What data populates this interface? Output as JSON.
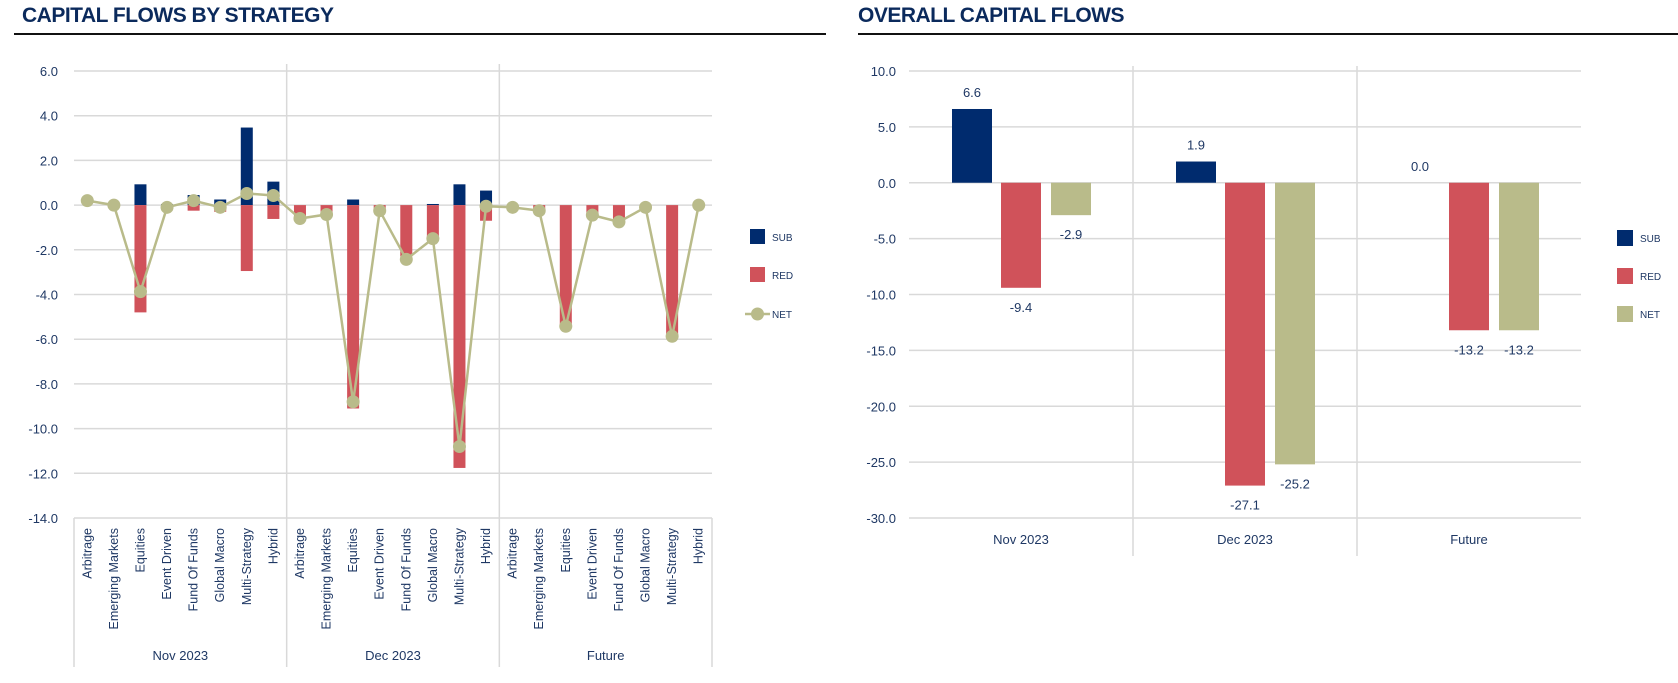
{
  "left_panel": {
    "title": "CAPITAL FLOWS BY STRATEGY"
  },
  "right_panel": {
    "title": "OVERALL CAPITAL FLOWS"
  },
  "colors": {
    "SUB": "#002b6e",
    "RED": "#d0525a",
    "NET": "#b9bb8a",
    "grid": "#d9d9d9",
    "title": "#0b2a5c"
  },
  "chart_data": [
    {
      "type": "bar",
      "subtype": "grouped-bar-with-line",
      "title": "CAPITAL FLOWS BY STRATEGY",
      "ylim": [
        -14,
        6
      ],
      "yticks": [
        "6.0",
        "4.0",
        "2.0",
        "0.0",
        "-2.0",
        "-4.0",
        "-6.0",
        "-8.0",
        "-10.0",
        "-12.0",
        "-14.0"
      ],
      "ytick_values": [
        6,
        4,
        2,
        0,
        -2,
        -4,
        -6,
        -8,
        -10,
        -12,
        -14
      ],
      "grid": true,
      "legend": {
        "position": "right",
        "entries": [
          "SUB",
          "RED",
          "NET"
        ]
      },
      "categories": [
        "Arbitrage",
        "Emerging Markets",
        "Equities",
        "Event Driven",
        "Fund Of Funds",
        "Global Macro",
        "Multi-Strategy",
        "Hybrid"
      ],
      "groups": [
        {
          "label": "Nov 2023",
          "SUB": [
            0.0,
            0.0,
            0.93,
            0.05,
            0.45,
            0.25,
            3.47,
            1.05
          ],
          "RED": [
            0.0,
            0.0,
            -4.8,
            -0.15,
            -0.25,
            -0.3,
            -2.95,
            -0.62
          ],
          "NET": [
            0.2,
            0.0,
            -3.87,
            -0.1,
            0.2,
            -0.1,
            0.52,
            0.43
          ]
        },
        {
          "label": "Dec 2023",
          "SUB": [
            0.0,
            0.0,
            0.25,
            0.0,
            0.0,
            0.05,
            0.93,
            0.65
          ],
          "RED": [
            -0.6,
            -0.45,
            -9.1,
            -0.25,
            -2.3,
            -1.5,
            -11.76,
            -0.7
          ],
          "NET": [
            -0.6,
            -0.42,
            -8.8,
            -0.25,
            -2.43,
            -1.5,
            -10.8,
            -0.05
          ]
        },
        {
          "label": "Future",
          "SUB": [
            0.0,
            0.0,
            0.0,
            0.0,
            0.0,
            0.0,
            0.0,
            0.0
          ],
          "RED": [
            -0.1,
            -0.25,
            -5.4,
            -0.45,
            -0.75,
            -0.1,
            -5.9,
            0.0
          ],
          "NET": [
            -0.1,
            -0.25,
            -5.42,
            -0.45,
            -0.75,
            -0.1,
            -5.87,
            0.0
          ]
        }
      ]
    },
    {
      "type": "bar",
      "title": "OVERALL CAPITAL FLOWS",
      "ylim": [
        -30,
        10
      ],
      "yticks": [
        "10.0",
        "5.0",
        "0.0",
        "-5.0",
        "-10.0",
        "-15.0",
        "-20.0",
        "-25.0",
        "-30.0"
      ],
      "ytick_values": [
        10,
        5,
        0,
        -5,
        -10,
        -15,
        -20,
        -25,
        -30
      ],
      "grid": true,
      "legend": {
        "position": "right",
        "entries": [
          "SUB",
          "RED",
          "NET"
        ]
      },
      "categories": [
        "Nov 2023",
        "Dec 2023",
        "Future"
      ],
      "series": [
        {
          "name": "SUB",
          "values": [
            6.6,
            1.9,
            0.0
          ],
          "labels": [
            "6.6",
            "1.9",
            "0.0"
          ]
        },
        {
          "name": "RED",
          "values": [
            -9.4,
            -27.1,
            -13.2
          ],
          "labels": [
            "-9.4",
            "-27.1",
            "-13.2"
          ]
        },
        {
          "name": "NET",
          "values": [
            -2.9,
            -25.2,
            -13.2
          ],
          "labels": [
            "-2.9",
            "-25.2",
            "-13.2"
          ]
        }
      ]
    }
  ]
}
